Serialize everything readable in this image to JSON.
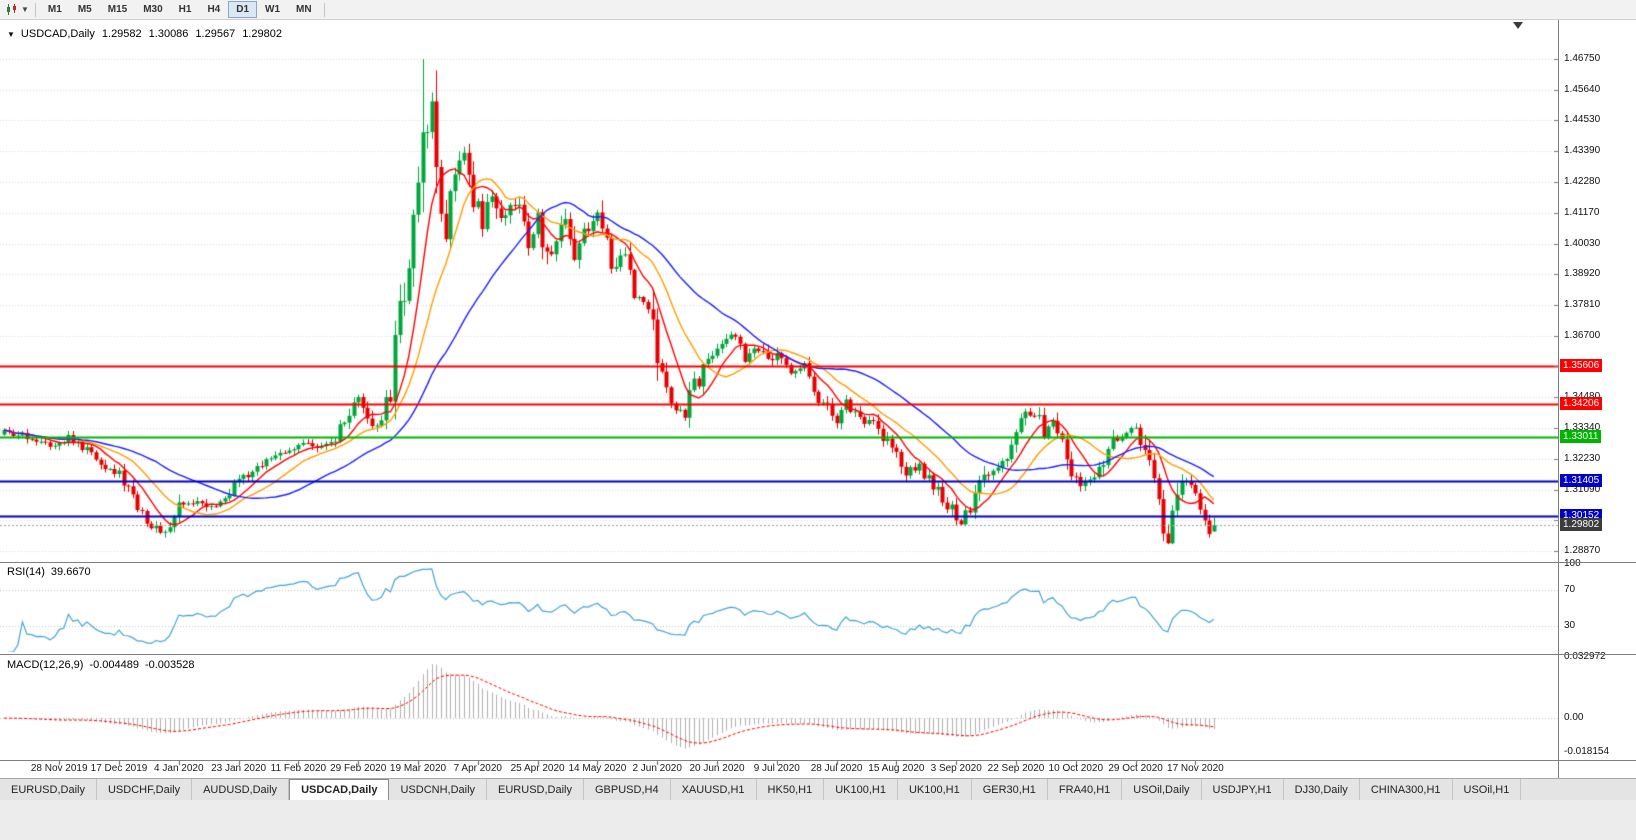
{
  "toolbar": {
    "timeframes": [
      "M1",
      "M5",
      "M15",
      "M30",
      "H1",
      "H4",
      "D1",
      "W1",
      "MN"
    ],
    "active_timeframe": "D1"
  },
  "chart_header": {
    "collapse_arrow": "▼",
    "symbol_title": "USDCAD,Daily",
    "open": "1.29582",
    "high": "1.30086",
    "low": "1.29567",
    "close": "1.29802"
  },
  "indicators": {
    "rsi_label": "RSI(14)",
    "rsi_value": "39.6670",
    "macd_label": "MACD(12,26,9)",
    "macd_value": "-0.004489",
    "macd_signal_value": "-0.003528"
  },
  "chart_data": {
    "type": "candlestick",
    "symbol": "USDCAD",
    "period": "Daily",
    "last_bar": {
      "open": 1.29582,
      "high": 1.30086,
      "low": 1.29567,
      "close": 1.29802
    },
    "price_range": [
      1.28543,
      1.48167
    ],
    "price_axis_ticks": [
      "1.46750",
      "1.45640",
      "1.44530",
      "1.43390",
      "1.42280",
      "1.41170",
      "1.40030",
      "1.38920",
      "1.37810",
      "1.36700",
      "1.35590",
      "1.34480",
      "1.33340",
      "1.32230",
      "1.31090",
      "1.29980",
      "1.28870"
    ],
    "current_price": {
      "value": "1.29802",
      "color": "#3c3c3c"
    },
    "horizontal_lines": [
      {
        "value": "1.35606",
        "price": 1.35606,
        "color": "#ff0000",
        "width": 2
      },
      {
        "value": "1.34206",
        "price": 1.34206,
        "color": "#ff0000",
        "width": 2
      },
      {
        "value": "1.33011",
        "price": 1.33011,
        "color": "#00b400",
        "width": 2
      },
      {
        "value": "1.31405",
        "price": 1.31405,
        "color": "#0000c8",
        "width": 2
      },
      {
        "value": "1.30152",
        "price": 1.30152,
        "color": "#0000c8",
        "width": 2
      }
    ],
    "candle_colors": {
      "up": "#00a63c",
      "down": "#e60000"
    },
    "moving_averages": [
      {
        "period": 8,
        "color": "#ff0000",
        "type": "sma"
      },
      {
        "period": 16,
        "color": "#ff9d00",
        "type": "sma"
      },
      {
        "period": 34,
        "color": "#1f1fff",
        "type": "sma"
      }
    ],
    "rsi": {
      "period": 14,
      "color": "#42a5d8",
      "levels": [
        70,
        30
      ],
      "axis_labels": [
        "100",
        "70",
        "30"
      ],
      "range": [
        0,
        100
      ]
    },
    "macd": {
      "fast": 12,
      "slow": 26,
      "signal": 9,
      "histogram_color": "#b0b0b0",
      "signal_color": "#ff0000",
      "axis_labels": [
        "0.032972",
        "0.00",
        "-0.018154"
      ],
      "range": [
        -0.0205,
        0.0336
      ]
    },
    "time_axis": {
      "labels": [
        "28 Nov 2019",
        "17 Dec 2019",
        "4 Jan 2020",
        "23 Jan 2020",
        "11 Feb 2020",
        "29 Feb 2020",
        "19 Mar 2020",
        "7 Apr 2020",
        "25 Apr 2020",
        "14 May 2020",
        "2 Jun 2020",
        "20 Jun 2020",
        "9 Jul 2020",
        "28 Jul 2020",
        "15 Aug 2020",
        "3 Sep 2020",
        "22 Sep 2020",
        "10 Oct 2020",
        "29 Oct 2020",
        "17 Nov 2020"
      ],
      "first_label_bar": 12,
      "bars_per_label": 13
    },
    "total_bars": 264,
    "price_path_anchors": [
      [
        0,
        1.331
      ],
      [
        6,
        1.33
      ],
      [
        10,
        1.328
      ],
      [
        14,
        1.33
      ],
      [
        19,
        1.324
      ],
      [
        25,
        1.3165
      ],
      [
        29,
        1.306
      ],
      [
        32,
        1.2975
      ],
      [
        35,
        1.2958
      ],
      [
        38,
        1.3045
      ],
      [
        42,
        1.3075
      ],
      [
        46,
        1.305
      ],
      [
        51,
        1.3135
      ],
      [
        56,
        1.32
      ],
      [
        60,
        1.3245
      ],
      [
        64,
        1.328
      ],
      [
        68,
        1.325
      ],
      [
        72,
        1.329
      ],
      [
        75,
        1.338
      ],
      [
        77,
        1.3425
      ],
      [
        80,
        1.333
      ],
      [
        82,
        1.338
      ],
      [
        84,
        1.345
      ],
      [
        86,
        1.373
      ],
      [
        88,
        1.395
      ],
      [
        90,
        1.428
      ],
      [
        91,
        1.451
      ],
      [
        92,
        1.442
      ],
      [
        93,
        1.448
      ],
      [
        94,
        1.426
      ],
      [
        96,
        1.408
      ],
      [
        98,
        1.425
      ],
      [
        100,
        1.435
      ],
      [
        102,
        1.418
      ],
      [
        104,
        1.409
      ],
      [
        106,
        1.417
      ],
      [
        108,
        1.406
      ],
      [
        110,
        1.419
      ],
      [
        112,
        1.412
      ],
      [
        114,
        1.401
      ],
      [
        116,
        1.409
      ],
      [
        118,
        1.395
      ],
      [
        120,
        1.402
      ],
      [
        122,
        1.411
      ],
      [
        124,
        1.398
      ],
      [
        126,
        1.405
      ],
      [
        129,
        1.411
      ],
      [
        131,
        1.398
      ],
      [
        133,
        1.39
      ],
      [
        135,
        1.397
      ],
      [
        137,
        1.383
      ],
      [
        140,
        1.378
      ],
      [
        142,
        1.356
      ],
      [
        145,
        1.343
      ],
      [
        148,
        1.339
      ],
      [
        150,
        1.348
      ],
      [
        153,
        1.359
      ],
      [
        156,
        1.365
      ],
      [
        158,
        1.368
      ],
      [
        161,
        1.36
      ],
      [
        164,
        1.362
      ],
      [
        166,
        1.356
      ],
      [
        168,
        1.359
      ],
      [
        171,
        1.3545
      ],
      [
        174,
        1.356
      ],
      [
        176,
        1.348
      ],
      [
        178,
        1.342
      ],
      [
        181,
        1.336
      ],
      [
        183,
        1.3415
      ],
      [
        186,
        1.338
      ],
      [
        189,
        1.334
      ],
      [
        192,
        1.328
      ],
      [
        194,
        1.325
      ],
      [
        196,
        1.318
      ],
      [
        199,
        1.32
      ],
      [
        202,
        1.312
      ],
      [
        205,
        1.306
      ],
      [
        208,
        1.3
      ],
      [
        210,
        1.304
      ],
      [
        213,
        1.315
      ],
      [
        216,
        1.318
      ],
      [
        218,
        1.323
      ],
      [
        220,
        1.33
      ],
      [
        222,
        1.338
      ],
      [
        224,
        1.339
      ],
      [
        226,
        1.333
      ],
      [
        228,
        1.335
      ],
      [
        230,
        1.328
      ],
      [
        232,
        1.318
      ],
      [
        234,
        1.314
      ],
      [
        237,
        1.316
      ],
      [
        239,
        1.323
      ],
      [
        241,
        1.328
      ],
      [
        244,
        1.332
      ],
      [
        246,
        1.333
      ],
      [
        248,
        1.324
      ],
      [
        250,
        1.312
      ],
      [
        252,
        1.299
      ],
      [
        253,
        1.2935
      ],
      [
        255,
        1.309
      ],
      [
        257,
        1.314
      ],
      [
        259,
        1.307
      ],
      [
        261,
        1.301
      ],
      [
        262,
        1.2958
      ],
      [
        263,
        1.29802
      ]
    ]
  },
  "tabs": {
    "labels": [
      "EURUSD,Daily",
      "USDCHF,Daily",
      "AUDUSD,Daily",
      "USDCAD,Daily",
      "USDCNH,Daily",
      "EURUSD,Daily",
      "GBPUSD,H4",
      "XAUUSD,H1",
      "HK50,H1",
      "UK100,H1",
      "UK100,H1",
      "GER30,H1",
      "FRA40,H1",
      "USOil,Daily",
      "USDJPY,H1",
      "DJ30,Daily",
      "CHINA300,H1",
      "USOil,H1"
    ],
    "active_index": 3
  }
}
